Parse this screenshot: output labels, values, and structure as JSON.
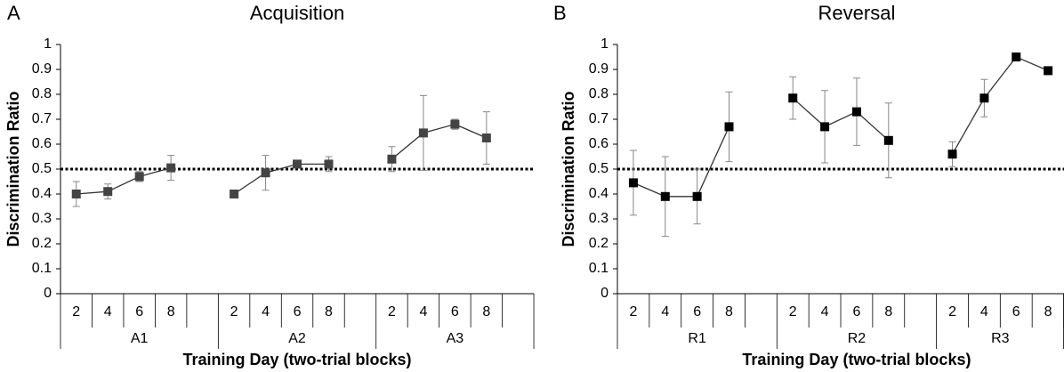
{
  "chart_data": [
    {
      "type": "line",
      "panel_label": "A",
      "title": "Acquisition",
      "ylabel": "Discrimination Ratio",
      "xlabel": "Training Day (two-trial blocks)",
      "categories": [
        "2",
        "4",
        "6",
        "8",
        null,
        "2",
        "4",
        "6",
        "8",
        null,
        "2",
        "4",
        "6",
        "8",
        null
      ],
      "groups": [
        "A1",
        "A2",
        "A3"
      ],
      "values": [
        0.4,
        0.41,
        0.47,
        0.505,
        null,
        0.4,
        0.485,
        0.52,
        0.52,
        null,
        0.54,
        0.645,
        0.68,
        0.625,
        null
      ],
      "errors": [
        0.05,
        0.03,
        0.02,
        0.05,
        null,
        0.015,
        0.07,
        0.01,
        0.03,
        null,
        0.05,
        0.15,
        0.02,
        0.105,
        null
      ],
      "color": "#444444",
      "reference_line": 0.5,
      "ylim": [
        0,
        1
      ],
      "yticks": [
        0,
        0.1,
        0.2,
        0.3,
        0.4,
        0.5,
        0.6,
        0.7,
        0.8,
        0.9,
        1
      ]
    },
    {
      "type": "line",
      "panel_label": "B",
      "title": "Reversal",
      "ylabel": "Discrimination Ratio",
      "xlabel": "Training Day (two-trial blocks)",
      "categories": [
        "2",
        "4",
        "6",
        "8",
        null,
        "2",
        "4",
        "6",
        "8",
        null,
        "2",
        "4",
        "6",
        "8"
      ],
      "groups": [
        "R1",
        "R2",
        "R3"
      ],
      "values": [
        0.445,
        0.39,
        0.39,
        0.67,
        null,
        0.785,
        0.67,
        0.73,
        0.615,
        null,
        0.56,
        0.785,
        0.95,
        0.895
      ],
      "errors": [
        0.13,
        0.16,
        0.11,
        0.14,
        null,
        0.085,
        0.145,
        0.135,
        0.15,
        null,
        0.05,
        0.075,
        0,
        0
      ],
      "color": "#000000",
      "reference_line": 0.5,
      "ylim": [
        0,
        1
      ],
      "yticks": [
        0,
        0.1,
        0.2,
        0.3,
        0.4,
        0.5,
        0.6,
        0.7,
        0.8,
        0.9,
        1
      ]
    }
  ]
}
